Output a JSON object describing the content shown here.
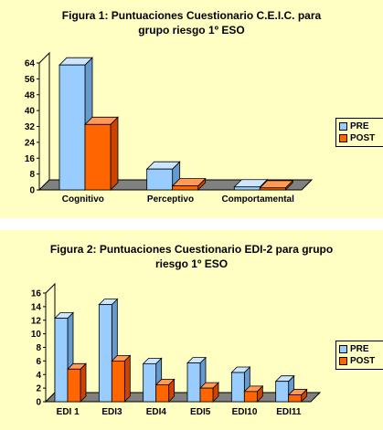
{
  "charts": [
    {
      "title_line1": "Figura 1: Puntuaciones Cuestionario C.E.I.C. para",
      "title_line2": "grupo riesgo 1º ESO",
      "legend": {
        "pre": "PRE",
        "post": "POST"
      }
    },
    {
      "title_line1": "Figura 2: Puntuaciones Cuestionario EDI-2 para grupo",
      "title_line2": "riesgo 1º ESO",
      "legend": {
        "pre": "PRE",
        "post": "POST"
      }
    }
  ],
  "colors": {
    "pre": "#99ccff",
    "post": "#ff6600",
    "background": "#ffffc4",
    "floor": "#808080"
  },
  "chart_data": [
    {
      "type": "bar",
      "title": "Figura 1: Puntuaciones Cuestionario C.E.I.C. para grupo riesgo 1º ESO",
      "categories": [
        "Cognitivo",
        "Perceptivo",
        "Comportamental"
      ],
      "series": [
        {
          "name": "PRE",
          "values": [
            63,
            10.5,
            1.5
          ]
        },
        {
          "name": "POST",
          "values": [
            33,
            2,
            1
          ]
        }
      ],
      "ylim": [
        0,
        64
      ],
      "yticks": [
        "0",
        "8",
        "16",
        "24",
        "32",
        "40",
        "48",
        "56",
        "64"
      ],
      "grid": false,
      "legend": "right"
    },
    {
      "type": "bar",
      "title": "Figura 2: Puntuaciones Cuestionario EDI-2 para grupo riesgo 1º ESO",
      "categories": [
        "EDI 1",
        "EDI3",
        "EDI4",
        "EDI5",
        "EDI10",
        "EDI11"
      ],
      "series": [
        {
          "name": "PRE",
          "values": [
            12.3,
            14.3,
            5.6,
            5.7,
            4.3,
            3.0
          ]
        },
        {
          "name": "POST",
          "values": [
            4.8,
            6.0,
            2.5,
            2.0,
            1.5,
            1.0
          ]
        }
      ],
      "ylim": [
        0,
        16
      ],
      "yticks": [
        "0",
        "2",
        "4",
        "6",
        "8",
        "10",
        "12",
        "14",
        "16"
      ],
      "grid": false,
      "legend": "right"
    }
  ]
}
